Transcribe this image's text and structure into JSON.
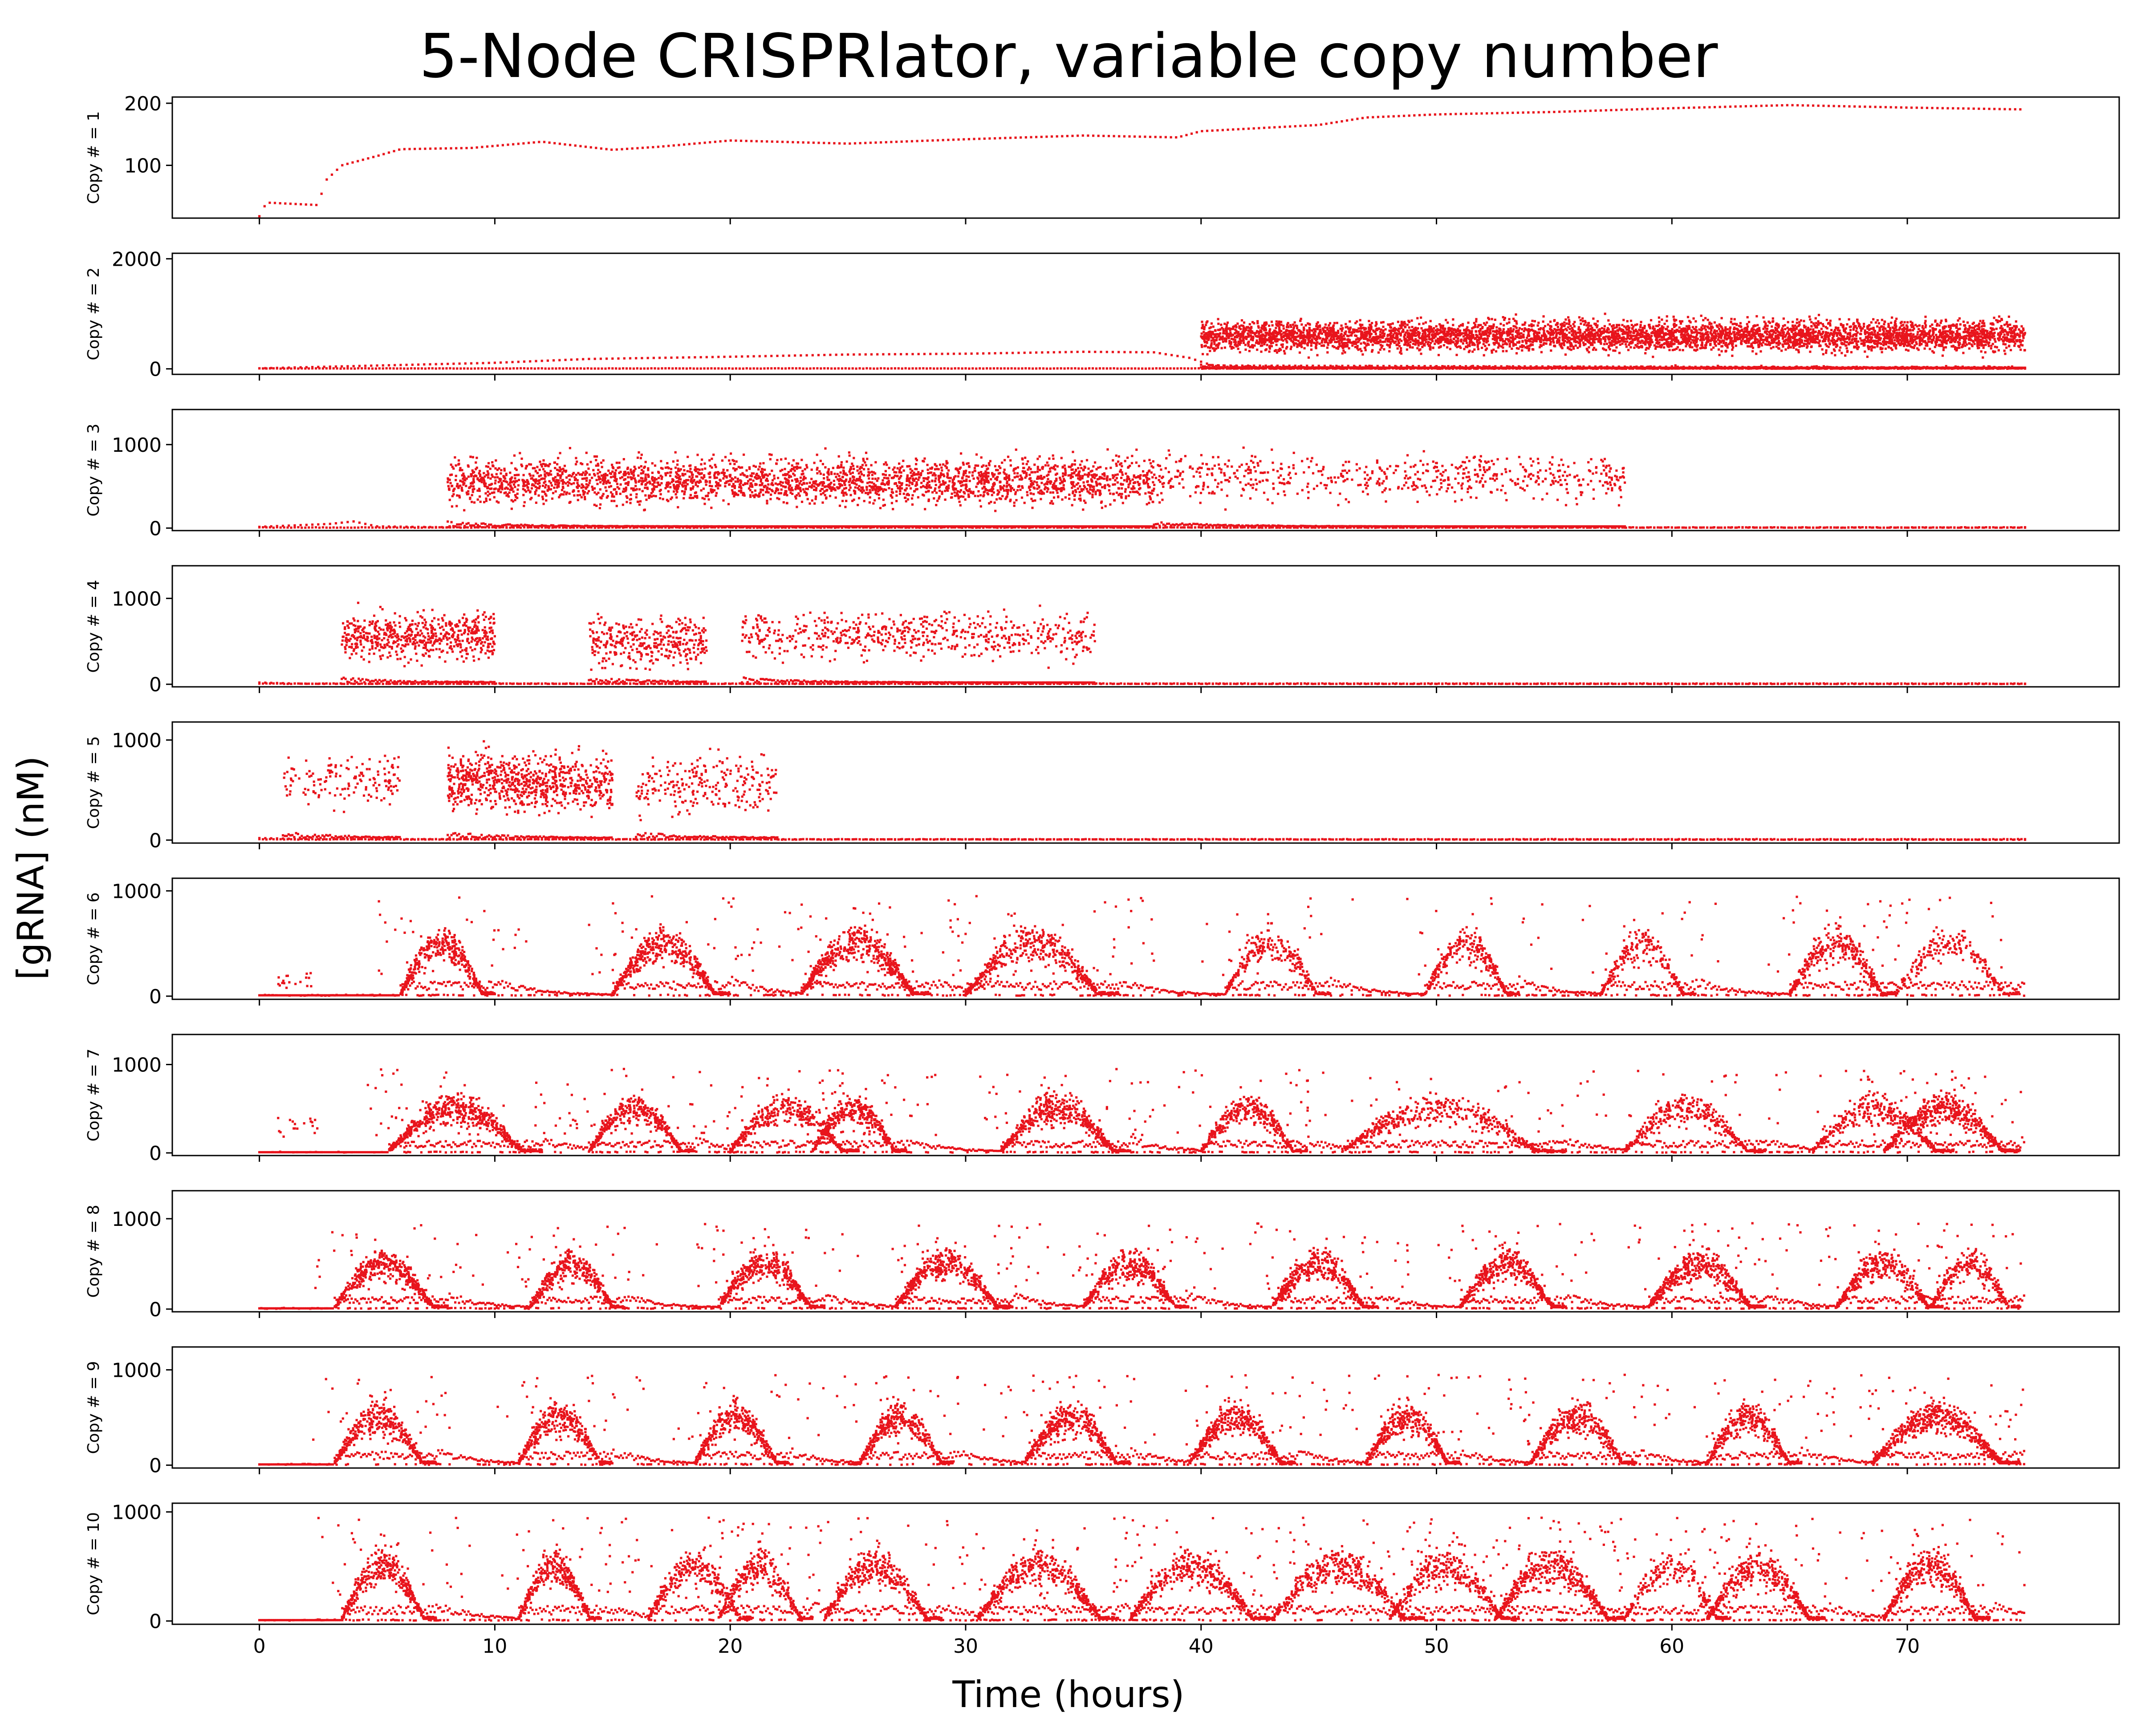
{
  "figure": {
    "title": "5-Node CRISPRlator, variable copy number",
    "xlabel": "Time (hours)",
    "ylabel": "[gRNA] (nM)"
  },
  "chart_data": {
    "type": "scatter",
    "marker_color": "#e8141c",
    "x_ticks": [
      0,
      10,
      20,
      30,
      40,
      50,
      60,
      70
    ],
    "xlim": [
      -3.7,
      79
    ],
    "panels": [
      {
        "ylabel": "Copy # = 1",
        "ylim": [
          15,
          210
        ],
        "yticks": [
          100,
          200
        ],
        "pattern": "trend",
        "trend": [
          [
            0,
            18
          ],
          [
            0.3,
            40
          ],
          [
            2.5,
            36
          ],
          [
            2.8,
            75
          ],
          [
            3.5,
            100
          ],
          [
            5,
            115
          ],
          [
            6,
            126
          ],
          [
            9,
            128
          ],
          [
            12,
            138
          ],
          [
            15,
            125
          ],
          [
            17,
            130
          ],
          [
            20,
            140
          ],
          [
            25,
            135
          ],
          [
            30,
            142
          ],
          [
            35,
            148
          ],
          [
            39,
            145
          ],
          [
            40,
            155
          ],
          [
            45,
            165
          ],
          [
            47,
            177
          ],
          [
            50,
            182
          ],
          [
            55,
            186
          ],
          [
            60,
            192
          ],
          [
            65,
            197
          ],
          [
            70,
            193
          ],
          [
            75,
            190
          ]
        ]
      },
      {
        "ylabel": "Copy # = 2",
        "ylim": [
          -100,
          2100
        ],
        "yticks": [
          0,
          2000
        ],
        "pattern": "sparse-cluster",
        "trend": [
          [
            0,
            10
          ],
          [
            10,
            110
          ],
          [
            14,
            180
          ],
          [
            20,
            220
          ],
          [
            25,
            260
          ],
          [
            30,
            275
          ],
          [
            35,
            310
          ],
          [
            38,
            300
          ],
          [
            39.5,
            200
          ],
          [
            40.5,
            60
          ],
          [
            75,
            20
          ]
        ],
        "clusters": [
          [
            40,
            75,
            600,
            14
          ]
        ]
      },
      {
        "ylabel": "Copy # = 3",
        "ylim": [
          -30,
          1420
        ],
        "yticks": [
          0,
          1000
        ],
        "pattern": "sparse-cluster",
        "trend": [
          [
            0,
            15
          ],
          [
            3,
            50
          ],
          [
            4,
            80
          ],
          [
            5,
            20
          ],
          [
            8,
            10
          ],
          [
            75,
            5
          ]
        ],
        "clusters": [
          [
            8,
            38,
            560,
            9
          ],
          [
            38,
            58,
            600,
            3
          ]
        ]
      },
      {
        "ylabel": "Copy # = 4",
        "ylim": [
          -30,
          1380
        ],
        "yticks": [
          0,
          1000
        ],
        "pattern": "sparse-cluster",
        "trend": [
          [
            0,
            20
          ],
          [
            2,
            5
          ],
          [
            75,
            3
          ]
        ],
        "clusters": [
          [
            3.5,
            10,
            560,
            9
          ],
          [
            14,
            19,
            480,
            7
          ],
          [
            20.5,
            35.5,
            560,
            4
          ]
        ]
      },
      {
        "ylabel": "Copy # = 5",
        "ylim": [
          -30,
          1180
        ],
        "yticks": [
          0,
          1000
        ],
        "pattern": "sparse-cluster",
        "trend": [
          [
            0,
            20
          ],
          [
            2,
            10
          ],
          [
            75,
            3
          ]
        ],
        "clusters": [
          [
            1,
            6,
            600,
            3
          ],
          [
            8,
            15,
            580,
            11
          ],
          [
            16,
            22,
            550,
            4
          ]
        ]
      },
      {
        "ylabel": "Copy # = 6",
        "ylim": [
          -30,
          1120
        ],
        "yticks": [
          0,
          1000
        ],
        "pattern": "oscillating",
        "spike": [
          0.8,
          2.2,
          200
        ],
        "bursts": [
          [
            6,
            10,
            1
          ],
          [
            15,
            20,
            1
          ],
          [
            23,
            28.5,
            1
          ],
          [
            30,
            36.5,
            0.8
          ],
          [
            41,
            45.5,
            0.6
          ],
          [
            49.5,
            53.5,
            0.7
          ],
          [
            57,
            61,
            0.6
          ],
          [
            65,
            69.5,
            0.8
          ],
          [
            69.5,
            74.8,
            0.4
          ]
        ]
      },
      {
        "ylabel": "Copy # = 7",
        "ylim": [
          -30,
          1340
        ],
        "yticks": [
          0,
          1000
        ],
        "pattern": "oscillating",
        "spike": [
          0.5,
          2.5,
          400
        ],
        "bursts": [
          [
            5.5,
            12,
            1
          ],
          [
            14,
            18.5,
            0.9
          ],
          [
            20,
            25.5,
            0.7
          ],
          [
            23.5,
            27.5,
            1
          ],
          [
            31.5,
            37,
            1
          ],
          [
            40,
            44.5,
            0.8
          ],
          [
            46,
            55.5,
            0.5
          ],
          [
            58,
            64,
            0.6
          ],
          [
            66,
            72,
            0.6
          ],
          [
            69,
            74.8,
            0.9
          ]
        ]
      },
      {
        "ylabel": "Copy # = 8",
        "ylim": [
          -30,
          1310
        ],
        "yticks": [
          0,
          1000
        ],
        "pattern": "oscillating",
        "bursts": [
          [
            3.2,
            8,
            1
          ],
          [
            11.5,
            15.5,
            1
          ],
          [
            19.5,
            24,
            1
          ],
          [
            27,
            32,
            1
          ],
          [
            35,
            39.5,
            1
          ],
          [
            43,
            47.5,
            1
          ],
          [
            51,
            55.5,
            1
          ],
          [
            59,
            64,
            1
          ],
          [
            67,
            71.5,
            0.9
          ],
          [
            71,
            74.8,
            0.7
          ]
        ]
      },
      {
        "ylabel": "Copy # = 9",
        "ylim": [
          -30,
          1240
        ],
        "yticks": [
          0,
          1000
        ],
        "pattern": "oscillating",
        "bursts": [
          [
            3.2,
            7.5,
            1
          ],
          [
            11,
            15,
            1
          ],
          [
            18.5,
            22.5,
            1
          ],
          [
            25.5,
            29.5,
            1
          ],
          [
            32.5,
            37,
            1
          ],
          [
            39.5,
            44,
            1
          ],
          [
            47,
            51,
            1
          ],
          [
            54,
            58.5,
            1
          ],
          [
            61.5,
            65.5,
            1
          ],
          [
            68.5,
            74.8,
            1
          ]
        ]
      },
      {
        "ylabel": "Copy # = 10",
        "ylim": [
          -30,
          1080
        ],
        "yticks": [
          0,
          1000
        ],
        "pattern": "oscillating",
        "bursts": [
          [
            3.5,
            7.5,
            1
          ],
          [
            11,
            14.5,
            1
          ],
          [
            16.5,
            21,
            0.7
          ],
          [
            19.5,
            23.5,
            0.8
          ],
          [
            24,
            29,
            0.8
          ],
          [
            30.5,
            36.5,
            0.8
          ],
          [
            37,
            43,
            0.8
          ],
          [
            43,
            49.5,
            0.7
          ],
          [
            48,
            53.5,
            0.7
          ],
          [
            52.5,
            58,
            0.9
          ],
          [
            58,
            62.5,
            0.5
          ],
          [
            61.5,
            66.5,
            0.9
          ],
          [
            69,
            73.5,
            1
          ]
        ]
      }
    ]
  }
}
